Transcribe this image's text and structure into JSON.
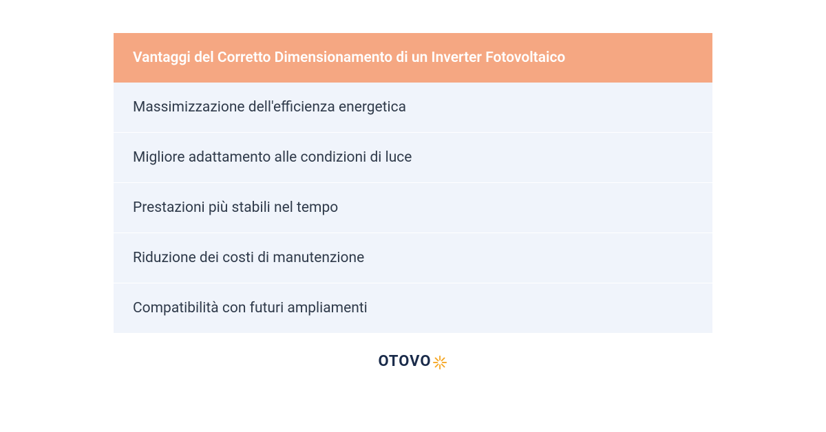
{
  "table": {
    "header": "Vantaggi del Corretto Dimensionamento di un Inverter Fotovoltaico",
    "header_bg": "#f5a782",
    "header_text_color": "#ffffff",
    "row_bg": "#f0f4fb",
    "row_text_color": "#2f3a4a",
    "rows": [
      "Massimizzazione dell'efficienza energetica",
      "Migliore adattamento alle condizioni di luce",
      "Prestazioni più stabili nel tempo",
      "Riduzione dei costi di manutenzione",
      "Compatibilità con futuri ampliamenti"
    ]
  },
  "logo": {
    "text": "OTOVO",
    "text_color": "#1a2b4a",
    "accent_color": "#f5a623"
  }
}
